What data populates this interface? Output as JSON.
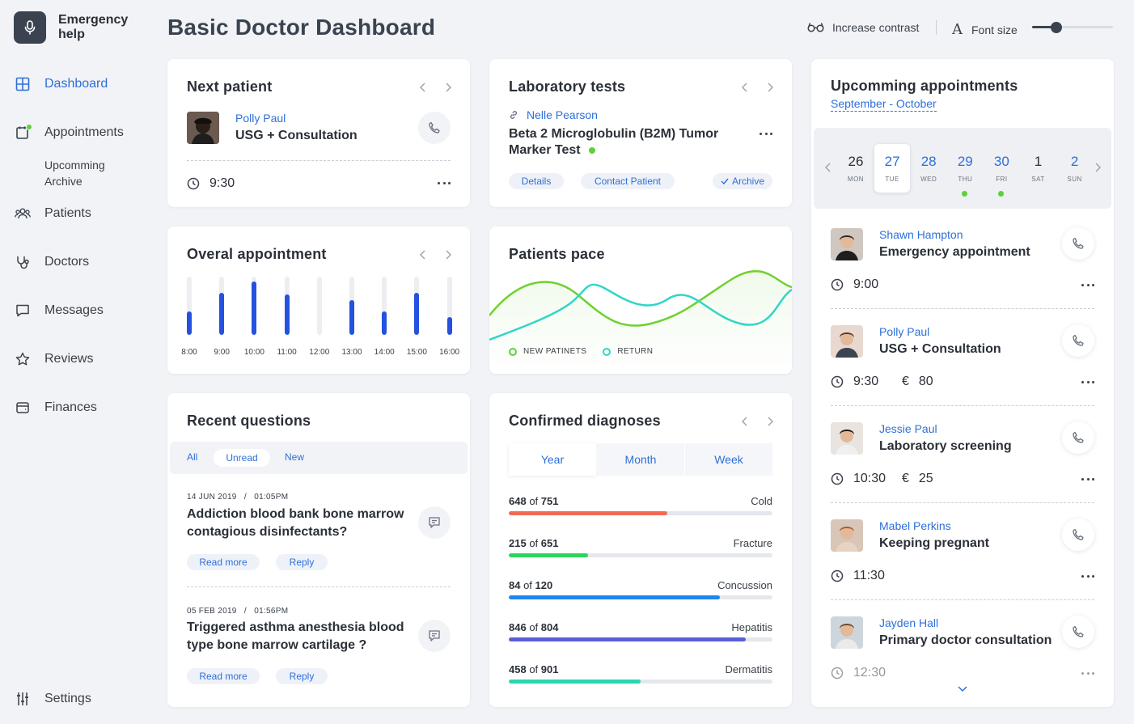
{
  "app": {
    "name": "Emergency help"
  },
  "sidebar": {
    "items": [
      {
        "label": "Dashboard",
        "icon": "grid-icon",
        "active": true
      },
      {
        "label": "Appointments",
        "icon": "calendar-icon"
      },
      {
        "label": "Patients",
        "icon": "users-icon"
      },
      {
        "label": "Doctors",
        "icon": "stethoscope-icon"
      },
      {
        "label": "Messages",
        "icon": "message-icon"
      },
      {
        "label": "Reviews",
        "icon": "star-icon"
      },
      {
        "label": "Finances",
        "icon": "wallet-icon"
      }
    ],
    "sub_items": [
      "Upcomming",
      "Archive"
    ],
    "settings_label": "Settings"
  },
  "header": {
    "title": "Basic Doctor Dashboard",
    "contrast_label": "Increase contrast",
    "font_size_label": "Font size",
    "font_size_level": 0.3
  },
  "next_patient": {
    "title": "Next patient",
    "name": "Polly Paul",
    "type": "USG + Consultation",
    "time": "9:30"
  },
  "lab_tests": {
    "title": "Laboratory tests",
    "patient": "Nelle Pearson",
    "test": "Beta 2 Microglobulin (B2M) Tumor Marker Test",
    "details_label": "Details",
    "contact_label": "Contact Patient",
    "archive_label": "Archive"
  },
  "overall": {
    "title": "Overal appointment",
    "bars": [
      {
        "label": "8:00",
        "value": 0.4
      },
      {
        "label": "9:00",
        "value": 0.72
      },
      {
        "label": "10:00",
        "value": 0.92
      },
      {
        "label": "11:00",
        "value": 0.7
      },
      {
        "label": "12:00",
        "value": 0
      },
      {
        "label": "13:00",
        "value": 0.6
      },
      {
        "label": "14:00",
        "value": 0.4
      },
      {
        "label": "15:00",
        "value": 0.72
      },
      {
        "label": "16:00",
        "value": 0.3
      }
    ]
  },
  "pace": {
    "title": "Patients pace",
    "legend_new": "NEW PATINETS",
    "legend_return": "RETURN",
    "colors": {
      "new": "#6fd12f",
      "return": "#2fd6c8"
    }
  },
  "questions": {
    "title": "Recent questions",
    "filters": [
      "All",
      "Unread",
      "New"
    ],
    "items": [
      {
        "date": "14 JUN 2019",
        "time": "01:05PM",
        "text": "Addiction blood bank bone marrow contagious disinfectants?",
        "read_more": "Read more",
        "reply": "Reply"
      },
      {
        "date": "05 FEB 2019",
        "time": "01:56PM",
        "text": "Triggered asthma anesthesia blood type bone marrow cartilage ?",
        "read_more": "Read more",
        "reply": "Reply"
      }
    ]
  },
  "diagnoses": {
    "title": "Confirmed diagnoses",
    "tabs": [
      "Year",
      "Month",
      "Week"
    ],
    "of_word": "of",
    "items": [
      {
        "count": "648",
        "total": "751",
        "name": "Cold",
        "fill": 0.6,
        "color": "#f26a55"
      },
      {
        "count": "215",
        "total": "651",
        "name": "Fracture",
        "fill": 0.3,
        "color": "#29d65a"
      },
      {
        "count": "84",
        "total": "120",
        "name": "Concussion",
        "fill": 0.8,
        "color": "#1f86f0"
      },
      {
        "count": "846",
        "total": "804",
        "name": "Hepatitis",
        "fill": 0.9,
        "color": "#5a5fd8"
      },
      {
        "count": "458",
        "total": "901",
        "name": "Dermatitis",
        "fill": 0.5,
        "color": "#2bd6b0"
      }
    ]
  },
  "upcoming": {
    "title": "Upcomming appointments",
    "range": "September - October",
    "days": [
      {
        "d": "26",
        "w": "MON"
      },
      {
        "d": "27",
        "w": "TUE"
      },
      {
        "d": "28",
        "w": "WED"
      },
      {
        "d": "29",
        "w": "THU"
      },
      {
        "d": "30",
        "w": "FRI"
      },
      {
        "d": "1",
        "w": "SAT"
      },
      {
        "d": "2",
        "w": "SUN"
      }
    ],
    "appointments": [
      {
        "name": "Shawn Hampton",
        "type": "Emergency appointment",
        "time": "9:00",
        "price": ""
      },
      {
        "name": "Polly Paul",
        "type": "USG + Consultation",
        "time": "9:30",
        "price": "80"
      },
      {
        "name": "Jessie Paul",
        "type": "Laboratory screening",
        "time": "10:30",
        "price": "25"
      },
      {
        "name": "Mabel Perkins",
        "type": "Keeping pregnant",
        "time": "11:30",
        "price": ""
      },
      {
        "name": "Jayden Hall",
        "type": "Primary doctor consultation",
        "time": "12:30",
        "price": ""
      }
    ],
    "currency": "€"
  }
}
